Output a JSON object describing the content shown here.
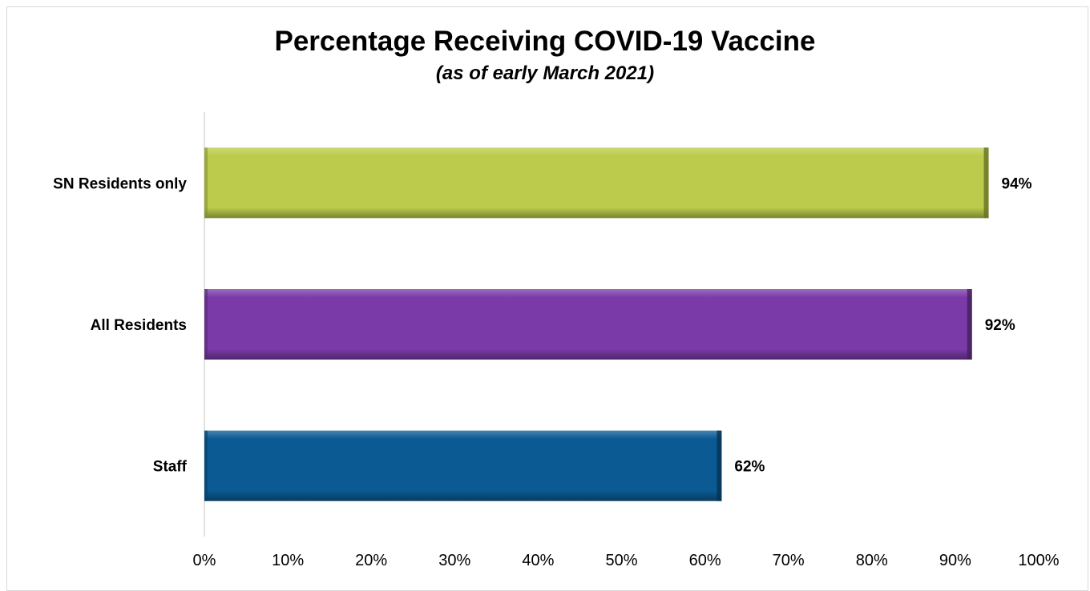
{
  "chart_data": {
    "type": "bar",
    "orientation": "horizontal",
    "title": "Percentage Receiving COVID-19 Vaccine",
    "subtitle": "(as of early March 2021)",
    "xlabel": "",
    "ylabel": "",
    "categories": [
      "SN Residents only",
      "All Residents",
      "Staff"
    ],
    "values": [
      94,
      92,
      62
    ],
    "value_labels": [
      "94%",
      "92%",
      "62%"
    ],
    "colors": [
      "#bccb4b",
      "#7a3ba8",
      "#0b5a93"
    ],
    "xlim": [
      0,
      100
    ],
    "x_ticks": [
      "0%",
      "10%",
      "20%",
      "30%",
      "40%",
      "50%",
      "60%",
      "70%",
      "80%",
      "90%",
      "100%"
    ],
    "grid": false
  }
}
